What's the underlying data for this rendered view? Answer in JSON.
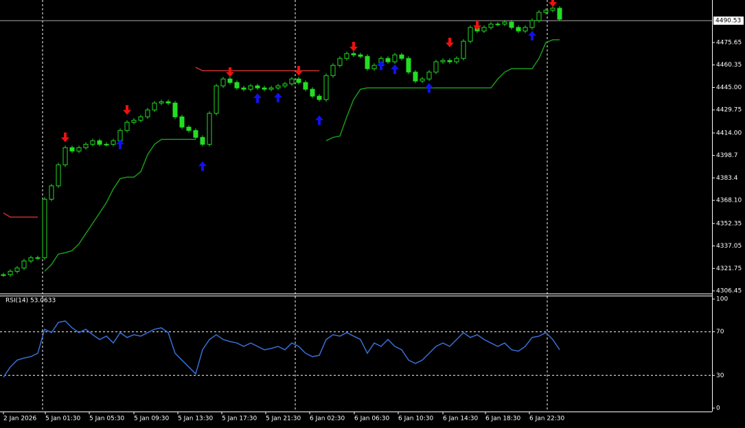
{
  "chart_data": [
    {
      "type": "line",
      "x": [
        0,
        1,
        2,
        3,
        4,
        5,
        6,
        7,
        8,
        9,
        10,
        11,
        12,
        13,
        14,
        15,
        16,
        17,
        18,
        19,
        20,
        21,
        22,
        23,
        24,
        25,
        26,
        27,
        28,
        29,
        30,
        31,
        32,
        33,
        34,
        35,
        36,
        37,
        38,
        39,
        40,
        41,
        42,
        43,
        44,
        45,
        46,
        47,
        48,
        49,
        50,
        51,
        52,
        53,
        54,
        55,
        56,
        57,
        58,
        59,
        60,
        61,
        62,
        63,
        64,
        65,
        66,
        67,
        68,
        69,
        70,
        71,
        72,
        73,
        74,
        75,
        76,
        77,
        78,
        79,
        80,
        81
      ],
      "xlim": [
        0,
        103.2
      ],
      "xticks": [
        {
          "value": 0,
          "label": "2 Jan 2026"
        },
        {
          "value": 6.1,
          "label": "5 Jan 01:30"
        },
        {
          "value": 12.5,
          "label": "5 Jan 05:30"
        },
        {
          "value": 19,
          "label": "5 Jan 09:30"
        },
        {
          "value": 25.4,
          "label": "5 Jan 13:30"
        },
        {
          "value": 31.8,
          "label": "5 Jan 17:30"
        },
        {
          "value": 38.2,
          "label": "5 Jan 21:30"
        },
        {
          "value": 44.6,
          "label": "6 Jan 02:30"
        },
        {
          "value": 51.1,
          "label": "6 Jan 06:30"
        },
        {
          "value": 57.5,
          "label": "6 Jan 10:30"
        },
        {
          "value": 64,
          "label": "6 Jan 14:30"
        },
        {
          "value": 70.2,
          "label": "6 Jan 18:30"
        },
        {
          "value": 76.6,
          "label": "6 Jan 22:30"
        }
      ],
      "separators": [
        5.7,
        42.5,
        79.2
      ],
      "ylim": [
        4304.6,
        4504.6
      ],
      "yticks": [
        4306.45,
        4321.75,
        4337.05,
        4352.35,
        {
          "value": 4368.1,
          "label": "4368.10"
        },
        4383.4,
        4398.7,
        {
          "value": 4414,
          "label": "4414.00"
        },
        4429.75,
        {
          "value": 4445,
          "label": "4445.00"
        },
        4460.35,
        4475.65
      ],
      "current_price": 4490.53,
      "series": [
        {
          "style": "candle",
          "color": "#22dd22",
          "values": [
            4317.4,
            4319.8,
            4322,
            4326.8,
            4329,
            4329,
            4368.9,
            4378,
            4392.3,
            4404,
            4401.7,
            4404,
            4406.3,
            4408.7,
            4406.3,
            4406.3,
            4408.7,
            4415.7,
            4421.3,
            4422.7,
            4425,
            4429.7,
            4434.4,
            4435.3,
            4434.4,
            4425,
            4418,
            4415.7,
            4411,
            4406.3,
            4427.4,
            4446.1,
            4450.8,
            4448.4,
            4444.7,
            4443.8,
            4446.1,
            4444.7,
            4443.8,
            4444.7,
            4446.1,
            4447.5,
            4450.8,
            4448.4,
            4443.8,
            4439.1,
            4436.8,
            4453.1,
            4460.1,
            4464.8,
            4468.1,
            4467.2,
            4466.2,
            4457.8,
            4460.1,
            4464.8,
            4462.5,
            4467.2,
            4464.8,
            4455.5,
            4449.4,
            4450.8,
            4455.5,
            4462.5,
            4463.4,
            4462.5,
            4464.8,
            4476.5,
            4485.9,
            4483.5,
            4485.9,
            4488.2,
            4488.2,
            4489.6,
            4485.9,
            4483.5,
            4485.9,
            4490.6,
            4496.2,
            4497.6,
            4499,
            4491.5
          ]
        },
        {
          "style": "line",
          "color": "#c83232",
          "values": [
            4359.5,
            4356.7,
            4356.7,
            4356.7,
            4356.7,
            4356.7,
            null,
            null,
            null,
            null,
            null,
            null,
            null,
            null,
            null,
            null,
            null,
            null,
            null,
            null,
            null,
            null,
            null,
            null,
            null,
            null,
            null,
            null,
            4458.7,
            4456.4,
            4456.4,
            4456.4,
            4456.4,
            4456.4,
            4456.4,
            4456.4,
            4456.4,
            4456.4,
            4456.4,
            4456.4,
            4456.4,
            4456.4,
            4456.4,
            4456.4,
            4456.4,
            4456.4,
            4456.4,
            null,
            null,
            null,
            null,
            null,
            null,
            null,
            null,
            null,
            null,
            null,
            null,
            null,
            null,
            null,
            null,
            null,
            null,
            null,
            null,
            null,
            null,
            null,
            null,
            null,
            null,
            null,
            null,
            null,
            null,
            null,
            null,
            null,
            null,
            null
          ]
        },
        {
          "style": "line",
          "color": "#1a9a1a",
          "values": [
            null,
            null,
            null,
            null,
            null,
            null,
            4319.8,
            4324.4,
            4331.5,
            4332.4,
            4333.8,
            4338.5,
            4345.5,
            4352.5,
            4359.5,
            4366.6,
            4375.9,
            4382.9,
            4383.9,
            4383.9,
            4387.6,
            4399.3,
            4406.3,
            4409.6,
            4409.6,
            4409.6,
            4409.6,
            4409.6,
            4409.6,
            null,
            null,
            null,
            null,
            null,
            null,
            null,
            null,
            null,
            null,
            null,
            null,
            null,
            null,
            null,
            null,
            null,
            null,
            4408.7,
            4411,
            4411.9,
            4425,
            4436.8,
            4443.8,
            4444.7,
            4444.7,
            4444.7,
            4444.7,
            4444.7,
            4444.7,
            4444.7,
            4444.7,
            4444.7,
            4444.7,
            4444.7,
            4444.7,
            4444.7,
            4444.7,
            4444.7,
            4444.7,
            4444.7,
            4444.7,
            4444.7,
            4450.8,
            4455.5,
            4457.8,
            4457.8,
            4457.8,
            4457.8,
            4464.8,
            4475.6,
            4477.5,
            4477.5
          ]
        },
        {
          "style": "marker",
          "marker": "down",
          "color": "#ee1111",
          "x": [
            9,
            18,
            33,
            43,
            51,
            65,
            69,
            80
          ],
          "values": [
            4411,
            4429.7,
            4455.5,
            4456.4,
            4472.8,
            4475.6,
            4487.3,
            4503.2
          ]
        },
        {
          "style": "marker",
          "marker": "up",
          "color": "#1111ee",
          "x": [
            17,
            29,
            37,
            40,
            46,
            55,
            57,
            62,
            77
          ],
          "values": [
            4406.3,
            4391.4,
            4437.7,
            4438.2,
            4422.7,
            4460.1,
            4457.4,
            4444.7,
            4480.3
          ]
        }
      ]
    },
    {
      "type": "line",
      "title": "RSI(14) 53.0633",
      "x": [
        0,
        1,
        2,
        3,
        4,
        5,
        6,
        7,
        8,
        9,
        10,
        11,
        12,
        13,
        14,
        15,
        16,
        17,
        18,
        19,
        20,
        21,
        22,
        23,
        24,
        25,
        26,
        27,
        28,
        29,
        30,
        31,
        32,
        33,
        34,
        35,
        36,
        37,
        38,
        39,
        40,
        41,
        42,
        43,
        44,
        45,
        46,
        47,
        48,
        49,
        50,
        51,
        52,
        53,
        54,
        55,
        56,
        57,
        58,
        59,
        60,
        61,
        62,
        63,
        64,
        65,
        66,
        67,
        68,
        69,
        70,
        71,
        72,
        73,
        74,
        75,
        76,
        77,
        78,
        79,
        80,
        81
      ],
      "xlim": [
        0,
        103.2
      ],
      "ylim": [
        0,
        100
      ],
      "yticks": [
        0,
        30,
        70,
        100
      ],
      "levels": [
        30,
        70
      ],
      "series": [
        {
          "style": "line",
          "color": "#3a6fd8",
          "values": [
            28.3,
            37.7,
            44,
            45.9,
            47.2,
            50.3,
            72.3,
            69.2,
            78.6,
            79.9,
            73.6,
            69.2,
            72.3,
            67.3,
            62.9,
            66,
            59.7,
            69.2,
            64.8,
            67.3,
            66,
            69.2,
            72.3,
            73.6,
            69.2,
            50.3,
            44,
            37.7,
            31.4,
            53.5,
            62.9,
            67.3,
            62.9,
            61,
            59.7,
            56.6,
            59.7,
            56.6,
            53.5,
            54.7,
            56.6,
            53.5,
            59.7,
            56.6,
            50.3,
            47.2,
            48.4,
            62.9,
            67.3,
            66,
            69.2,
            66,
            62.9,
            50.3,
            59.7,
            56.6,
            62.9,
            56.6,
            53.5,
            44,
            40.9,
            44,
            50.3,
            56.6,
            59.7,
            56.6,
            62.9,
            69.2,
            64.8,
            67.3,
            62.9,
            59.7,
            56.6,
            59.7,
            53.5,
            52.2,
            56.6,
            64.8,
            66,
            69.2,
            62.9,
            53.5
          ]
        }
      ]
    }
  ]
}
